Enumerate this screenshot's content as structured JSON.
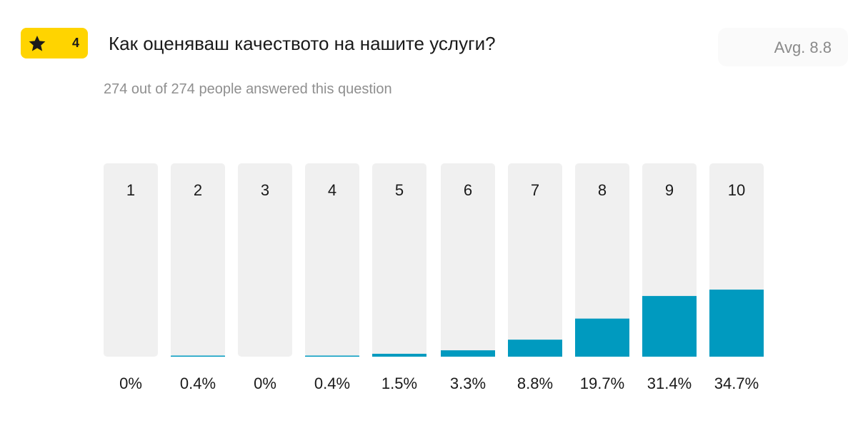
{
  "question": {
    "number": "4",
    "icon": "star-icon",
    "title": "Как оценяваш качеството на нашите услуги?",
    "average_label": "Avg. 8.8",
    "answered_text": "274 out of 274 people answered this question"
  },
  "colors": {
    "badge": "#ffd400",
    "bar_track": "#f0f0f0",
    "bar_fill": "#009abf"
  },
  "chart_data": {
    "type": "bar",
    "categories": [
      "1",
      "2",
      "3",
      "4",
      "5",
      "6",
      "7",
      "8",
      "9",
      "10"
    ],
    "values": [
      0,
      0.4,
      0,
      0.4,
      1.5,
      3.3,
      8.8,
      19.7,
      31.4,
      34.7
    ],
    "value_labels": [
      "0%",
      "0.4%",
      "0%",
      "0.4%",
      "1.5%",
      "3.3%",
      "8.8%",
      "19.7%",
      "31.4%",
      "34.7%"
    ],
    "ylim": [
      0,
      100
    ]
  }
}
